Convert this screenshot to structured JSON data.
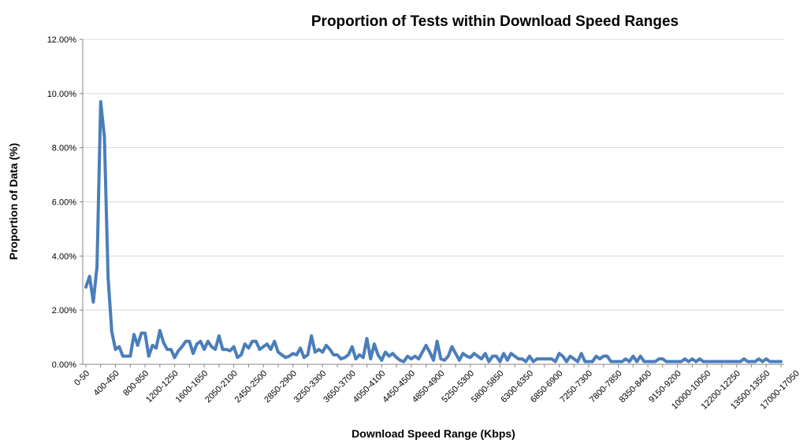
{
  "chart_data": {
    "type": "line",
    "title": "Proportion of Tests within Download Speed Ranges",
    "xlabel": "Download Speed Range (Kbps)",
    "ylabel": "Proportion of Data (%)",
    "ylim": [
      0,
      12
    ],
    "y_ticks": [
      "0.00%",
      "2.00%",
      "4.00%",
      "6.00%",
      "8.00%",
      "10.00%",
      "12.00%"
    ],
    "y_tick_values": [
      0,
      2,
      4,
      6,
      8,
      10,
      12
    ],
    "grid": true,
    "legend": "none",
    "series_color": "#4a7ebb",
    "x_tick_labels": [
      {
        "index": 0,
        "label": "0-50"
      },
      {
        "index": 8,
        "label": "400-450"
      },
      {
        "index": 16,
        "label": "800-850"
      },
      {
        "index": 24,
        "label": "1200-1250"
      },
      {
        "index": 32,
        "label": "1600-1650"
      },
      {
        "index": 40,
        "label": "2050-2100"
      },
      {
        "index": 48,
        "label": "2450-2500"
      },
      {
        "index": 56,
        "label": "2850-2900"
      },
      {
        "index": 64,
        "label": "3250-3300"
      },
      {
        "index": 72,
        "label": "3650-3700"
      },
      {
        "index": 80,
        "label": "4050-4100"
      },
      {
        "index": 88,
        "label": "4450-4500"
      },
      {
        "index": 96,
        "label": "4850-4900"
      },
      {
        "index": 104,
        "label": "5250-5300"
      },
      {
        "index": 112,
        "label": "5800-5850"
      },
      {
        "index": 120,
        "label": "6300-6350"
      },
      {
        "index": 128,
        "label": "6850-6900"
      },
      {
        "index": 136,
        "label": "7250-7300"
      },
      {
        "index": 144,
        "label": "7800-7850"
      },
      {
        "index": 152,
        "label": "8350-8400"
      },
      {
        "index": 160,
        "label": "9150-9200"
      },
      {
        "index": 168,
        "label": "10000-10050"
      },
      {
        "index": 176,
        "label": "12200-12250"
      },
      {
        "index": 184,
        "label": "13500-13550"
      },
      {
        "index": 192,
        "label": "17000-17050"
      }
    ],
    "series": [
      {
        "values": [
          2.85,
          3.25,
          2.3,
          3.6,
          9.7,
          8.4,
          3.2,
          1.2,
          0.55,
          0.65,
          0.3,
          0.3,
          0.3,
          1.1,
          0.7,
          1.15,
          1.15,
          0.3,
          0.7,
          0.6,
          1.25,
          0.8,
          0.55,
          0.55,
          0.25,
          0.5,
          0.65,
          0.85,
          0.85,
          0.4,
          0.75,
          0.85,
          0.55,
          0.85,
          0.65,
          0.55,
          1.05,
          0.55,
          0.55,
          0.5,
          0.65,
          0.25,
          0.35,
          0.75,
          0.6,
          0.85,
          0.85,
          0.55,
          0.65,
          0.75,
          0.55,
          0.85,
          0.45,
          0.35,
          0.25,
          0.3,
          0.4,
          0.35,
          0.6,
          0.25,
          0.35,
          1.05,
          0.45,
          0.55,
          0.45,
          0.7,
          0.55,
          0.35,
          0.35,
          0.2,
          0.25,
          0.35,
          0.65,
          0.2,
          0.35,
          0.25,
          0.95,
          0.2,
          0.75,
          0.35,
          0.15,
          0.45,
          0.3,
          0.4,
          0.25,
          0.15,
          0.1,
          0.3,
          0.2,
          0.3,
          0.2,
          0.45,
          0.7,
          0.45,
          0.15,
          0.85,
          0.2,
          0.15,
          0.3,
          0.65,
          0.4,
          0.15,
          0.4,
          0.3,
          0.25,
          0.4,
          0.3,
          0.2,
          0.4,
          0.1,
          0.3,
          0.3,
          0.1,
          0.4,
          0.15,
          0.4,
          0.3,
          0.2,
          0.2,
          0.1,
          0.3,
          0.1,
          0.2,
          0.2,
          0.2,
          0.2,
          0.2,
          0.1,
          0.4,
          0.3,
          0.1,
          0.3,
          0.2,
          0.1,
          0.4,
          0.1,
          0.1,
          0.1,
          0.3,
          0.2,
          0.3,
          0.3,
          0.1,
          0.1,
          0.1,
          0.1,
          0.2,
          0.1,
          0.3,
          0.1,
          0.3,
          0.1,
          0.1,
          0.1,
          0.1,
          0.2,
          0.2,
          0.1,
          0.1,
          0.1,
          0.1,
          0.1,
          0.2,
          0.1,
          0.2,
          0.1,
          0.2,
          0.1,
          0.1,
          0.1,
          0.1,
          0.1,
          0.1,
          0.1,
          0.1,
          0.1,
          0.1,
          0.1,
          0.2,
          0.1,
          0.1,
          0.1,
          0.2,
          0.1,
          0.2,
          0.1,
          0.1,
          0.1,
          0.1
        ]
      }
    ]
  }
}
